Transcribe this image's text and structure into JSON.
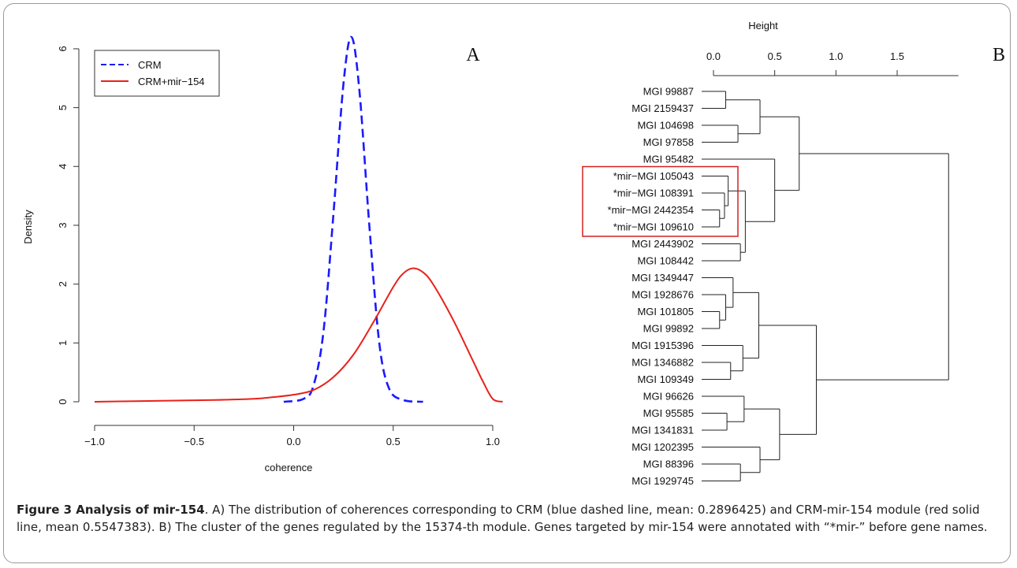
{
  "chart_data": [
    {
      "type": "line",
      "panel_label": "A",
      "xlabel": "coherence",
      "ylabel": "Density",
      "xlim": [
        -1.0,
        1.05
      ],
      "ylim": [
        0,
        6.2
      ],
      "x_ticks": [
        -1.0,
        -0.5,
        0.0,
        0.5,
        1.0
      ],
      "x_tick_labels": [
        "−1.0",
        "−0.5",
        "0.0",
        "0.5",
        "1.0"
      ],
      "y_ticks": [
        0,
        1,
        2,
        3,
        4,
        5,
        6
      ],
      "y_tick_labels": [
        "0",
        "1",
        "2",
        "3",
        "4",
        "5",
        "6"
      ],
      "grid": false,
      "legend_position": "top-left",
      "series": [
        {
          "name": "CRM",
          "color": "#1a1aff",
          "style": "dashed",
          "x": [
            -0.05,
            0.05,
            0.1,
            0.15,
            0.2,
            0.25,
            0.29,
            0.33,
            0.38,
            0.43,
            0.48,
            0.55,
            0.65
          ],
          "y": [
            0.0,
            0.05,
            0.28,
            1.2,
            3.2,
            5.4,
            6.2,
            5.3,
            3.0,
            1.0,
            0.22,
            0.03,
            0.0
          ]
        },
        {
          "name": "CRM+mir−154",
          "color": "#e8211a",
          "style": "solid",
          "x": [
            -1.0,
            -0.8,
            -0.6,
            -0.4,
            -0.2,
            -0.1,
            0.0,
            0.1,
            0.2,
            0.3,
            0.4,
            0.5,
            0.55,
            0.6,
            0.65,
            0.7,
            0.8,
            0.9,
            0.95,
            1.0,
            1.05
          ],
          "y": [
            0.0,
            0.01,
            0.02,
            0.03,
            0.05,
            0.08,
            0.12,
            0.2,
            0.42,
            0.8,
            1.35,
            1.95,
            2.18,
            2.27,
            2.2,
            2.0,
            1.4,
            0.7,
            0.35,
            0.05,
            0.0
          ]
        }
      ]
    },
    {
      "type": "dendrogram",
      "panel_label": "B",
      "axis_title": "Height",
      "x_ticks": [
        0.0,
        0.5,
        1.0,
        1.5
      ],
      "x_tick_labels": [
        "0.0",
        "0.5",
        "1.0",
        "1.5"
      ],
      "axis_max": 2.0,
      "highlight_box": {
        "from_leaf": 5,
        "to_leaf": 8,
        "color": "#d32020"
      },
      "leaves": [
        "MGI 99887",
        "MGI 2159437",
        "MGI 104698",
        "MGI 97858",
        "MGI 95482",
        "*mir−MGI 105043",
        "*mir−MGI 108391",
        "*mir−MGI 2442354",
        "*mir−MGI 109610",
        "MGI 2443902",
        "MGI 108442",
        "MGI 1349447",
        "MGI 1928676",
        "MGI 101805",
        "MGI 99892",
        "MGI 1915396",
        "MGI 1346882",
        "MGI 109349",
        "MGI 96626",
        "MGI 95585",
        "MGI 1341831",
        "MGI 1202395",
        "MGI 88396",
        "MGI 1929745"
      ],
      "merges": [
        {
          "id": "m1",
          "children": [
            "L0",
            "L1"
          ],
          "height": 0.1
        },
        {
          "id": "m2",
          "children": [
            "L2",
            "L3"
          ],
          "height": 0.2
        },
        {
          "id": "m3",
          "children": [
            "m1",
            "m2"
          ],
          "height": 0.38
        },
        {
          "id": "m4",
          "children": [
            "L7",
            "L8"
          ],
          "height": 0.05
        },
        {
          "id": "m5",
          "children": [
            "L6",
            "m4"
          ],
          "height": 0.09
        },
        {
          "id": "m6",
          "children": [
            "L5",
            "m5"
          ],
          "height": 0.12
        },
        {
          "id": "m7",
          "children": [
            "L9",
            "L10"
          ],
          "height": 0.22
        },
        {
          "id": "m8",
          "children": [
            "m6",
            "m7"
          ],
          "height": 0.26
        },
        {
          "id": "m9",
          "children": [
            "L4",
            "m8"
          ],
          "height": 0.5
        },
        {
          "id": "m10",
          "children": [
            "m3",
            "m9"
          ],
          "height": 0.7
        },
        {
          "id": "m11",
          "children": [
            "L13",
            "L14"
          ],
          "height": 0.05
        },
        {
          "id": "m12",
          "children": [
            "L12",
            "m11"
          ],
          "height": 0.1
        },
        {
          "id": "m13",
          "children": [
            "L11",
            "m12"
          ],
          "height": 0.16
        },
        {
          "id": "m14",
          "children": [
            "L16",
            "L17"
          ],
          "height": 0.14
        },
        {
          "id": "m15",
          "children": [
            "L15",
            "m14"
          ],
          "height": 0.24
        },
        {
          "id": "m16",
          "children": [
            "m13",
            "m15"
          ],
          "height": 0.37
        },
        {
          "id": "m17",
          "children": [
            "L19",
            "L20"
          ],
          "height": 0.11
        },
        {
          "id": "m18",
          "children": [
            "L18",
            "m17"
          ],
          "height": 0.25
        },
        {
          "id": "m19",
          "children": [
            "L22",
            "L23"
          ],
          "height": 0.22
        },
        {
          "id": "m20",
          "children": [
            "L21",
            "m19"
          ],
          "height": 0.38
        },
        {
          "id": "m21",
          "children": [
            "m18",
            "m20"
          ],
          "height": 0.54
        },
        {
          "id": "m22",
          "children": [
            "m16",
            "m21"
          ],
          "height": 0.84
        },
        {
          "id": "m23",
          "children": [
            "m10",
            "m22"
          ],
          "height": 1.92
        }
      ]
    }
  ],
  "caption": {
    "label": "Figure 3 Analysis of mir-154",
    "text": ". A) The distribution of coherences corresponding to CRM (blue dashed line, mean: 0.2896425) and CRM-mir-154 module (red solid line, mean 0.5547383). B) The cluster of the genes regulated by the 15374-th module. Genes targeted by mir-154 were annotated with “*mir-” before gene names."
  }
}
